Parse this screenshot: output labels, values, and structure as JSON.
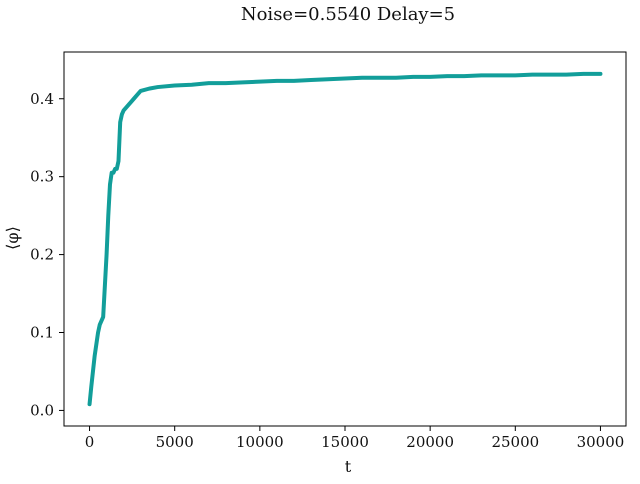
{
  "chart_data": {
    "type": "line",
    "title": "Noise=0.5540 Delay=5",
    "xlabel": "t",
    "ylabel": "⟨φ⟩",
    "xlim": [
      -1500,
      31500
    ],
    "ylim": [
      -0.02,
      0.46
    ],
    "x_ticks": [
      0,
      5000,
      10000,
      15000,
      20000,
      25000,
      30000
    ],
    "y_ticks": [
      0.0,
      0.1,
      0.2,
      0.3,
      0.4
    ],
    "x_tick_labels": [
      "0",
      "5000",
      "10000",
      "15000",
      "20000",
      "25000",
      "30000"
    ],
    "y_tick_labels": [
      "0.0",
      "0.1",
      "0.2",
      "0.3",
      "0.4"
    ],
    "grid": false,
    "series": [
      {
        "color": "#129e9a",
        "x": [
          0,
          100,
          200,
          300,
          400,
          500,
          600,
          700,
          800,
          900,
          1000,
          1100,
          1200,
          1300,
          1400,
          1500,
          1600,
          1700,
          1800,
          1900,
          2000,
          2200,
          2400,
          2600,
          2800,
          3000,
          3500,
          4000,
          5000,
          6000,
          7000,
          8000,
          9000,
          10000,
          11000,
          12000,
          13000,
          14000,
          15000,
          16000,
          17000,
          18000,
          19000,
          20000,
          21000,
          22000,
          23000,
          24000,
          25000,
          26000,
          27000,
          28000,
          29000,
          30000
        ],
        "values": [
          0.008,
          0.03,
          0.05,
          0.07,
          0.085,
          0.1,
          0.11,
          0.115,
          0.12,
          0.16,
          0.2,
          0.25,
          0.29,
          0.305,
          0.305,
          0.31,
          0.31,
          0.32,
          0.37,
          0.38,
          0.385,
          0.39,
          0.395,
          0.4,
          0.405,
          0.41,
          0.413,
          0.415,
          0.417,
          0.418,
          0.42,
          0.42,
          0.421,
          0.422,
          0.423,
          0.423,
          0.424,
          0.425,
          0.426,
          0.427,
          0.427,
          0.427,
          0.428,
          0.428,
          0.429,
          0.429,
          0.43,
          0.43,
          0.43,
          0.431,
          0.431,
          0.431,
          0.432,
          0.432
        ]
      }
    ]
  }
}
